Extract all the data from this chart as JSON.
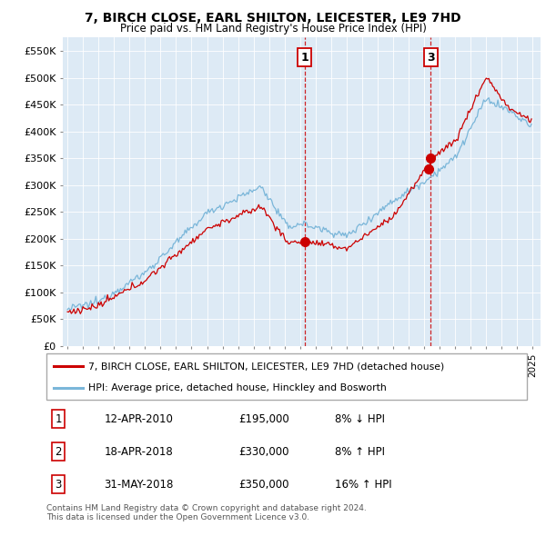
{
  "title": "7, BIRCH CLOSE, EARL SHILTON, LEICESTER, LE9 7HD",
  "subtitle": "Price paid vs. HM Land Registry's House Price Index (HPI)",
  "ylabel_ticks": [
    "£0",
    "£50K",
    "£100K",
    "£150K",
    "£200K",
    "£250K",
    "£300K",
    "£350K",
    "£400K",
    "£450K",
    "£500K",
    "£550K"
  ],
  "ytick_values": [
    0,
    50000,
    100000,
    150000,
    200000,
    250000,
    300000,
    350000,
    400000,
    450000,
    500000,
    550000
  ],
  "hpi_color": "#7ab6d9",
  "price_color": "#cc0000",
  "vline_color": "#cc0000",
  "background_color": "#ddeaf5",
  "sale1_date": 2010.28,
  "sale1_price": 195000,
  "sale2_date": 2018.29,
  "sale2_price": 330000,
  "sale3_date": 2018.42,
  "sale3_price": 350000,
  "legend_line1": "7, BIRCH CLOSE, EARL SHILTON, LEICESTER, LE9 7HD (detached house)",
  "legend_line2": "HPI: Average price, detached house, Hinckley and Bosworth",
  "table_entries": [
    {
      "num": "1",
      "date": "12-APR-2010",
      "price": "£195,000",
      "pct": "8% ↓ HPI"
    },
    {
      "num": "2",
      "date": "18-APR-2018",
      "price": "£330,000",
      "pct": "8% ↑ HPI"
    },
    {
      "num": "3",
      "date": "31-MAY-2018",
      "price": "£350,000",
      "pct": "16% ↑ HPI"
    }
  ],
  "footer": "Contains HM Land Registry data © Crown copyright and database right 2024.\nThis data is licensed under the Open Government Licence v3.0.",
  "xlim_lo": 1994.7,
  "xlim_hi": 2025.5,
  "ylim_lo": 0,
  "ylim_hi": 575000,
  "fig_width": 6.0,
  "fig_height": 5.9
}
